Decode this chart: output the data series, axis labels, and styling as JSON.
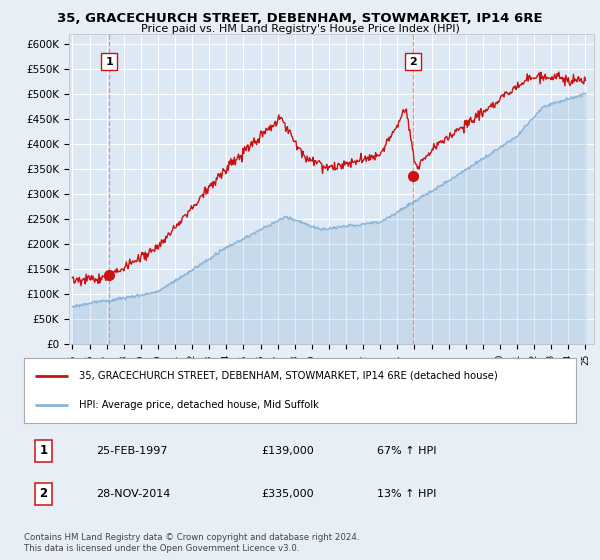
{
  "title1": "35, GRACECHURCH STREET, DEBENHAM, STOWMARKET, IP14 6RE",
  "title2": "Price paid vs. HM Land Registry's House Price Index (HPI)",
  "ylim": [
    0,
    620000
  ],
  "yticks": [
    0,
    50000,
    100000,
    150000,
    200000,
    250000,
    300000,
    350000,
    400000,
    450000,
    500000,
    550000,
    600000
  ],
  "xlim_start": 1994.8,
  "xlim_end": 2025.5,
  "background_color": "#e8eef5",
  "plot_bg_color": "#dce8f4",
  "grid_color": "#ffffff",
  "sale1_date": 1997.15,
  "sale1_price": 139000,
  "sale1_label": "1",
  "sale2_date": 2014.92,
  "sale2_price": 335000,
  "sale2_label": "2",
  "legend_line1": "35, GRACECHURCH STREET, DEBENHAM, STOWMARKET, IP14 6RE (detached house)",
  "legend_line2": "HPI: Average price, detached house, Mid Suffolk",
  "sale1_text": "25-FEB-1997",
  "sale1_amount": "£139,000",
  "sale1_hpi": "67% ↑ HPI",
  "sale2_text": "28-NOV-2014",
  "sale2_amount": "£335,000",
  "sale2_hpi": "13% ↑ HPI",
  "footer": "Contains HM Land Registry data © Crown copyright and database right 2024.\nThis data is licensed under the Open Government Licence v3.0.",
  "hpi_color": "#8ab4d8",
  "price_color": "#cc1111",
  "vline_color": "#dd8888"
}
